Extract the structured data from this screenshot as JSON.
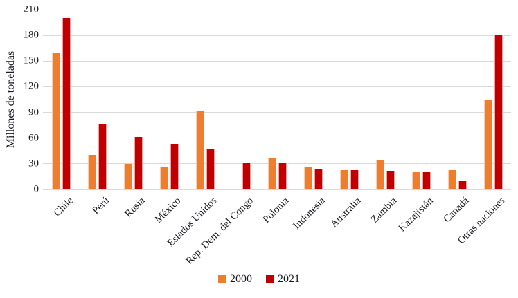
{
  "chart_data": {
    "type": "bar",
    "title": "",
    "ylabel": "Millones de toneladas",
    "xlabel": "",
    "categories": [
      "Chile",
      "Perú",
      "Rusia",
      "México",
      "Estados Unidos",
      "Rep. Dem. del Congo",
      "Polonia",
      "Indonesia",
      "Australia",
      "Zambia",
      "Kazajistán",
      "Canadá",
      "Otras naciones"
    ],
    "series": [
      {
        "name": "2000",
        "color": "#ED7D31",
        "values": [
          160,
          40,
          30,
          27,
          91,
          null,
          36,
          26,
          23,
          34,
          20,
          23,
          105
        ]
      },
      {
        "name": "2021",
        "color": "#C00000",
        "values": [
          200,
          77,
          61,
          53,
          47,
          31,
          31,
          24,
          23,
          21,
          20,
          10,
          180
        ]
      }
    ],
    "ylim": [
      0,
      210
    ],
    "ytick_step": 30,
    "yticks": [
      0,
      30,
      60,
      90,
      120,
      150,
      180,
      210
    ],
    "grid": "horizontal",
    "gridline_color": "#D9D9D9",
    "text_color": "#1a1a24",
    "legend_position": "bottom",
    "background_color": "#FFFFFF"
  }
}
